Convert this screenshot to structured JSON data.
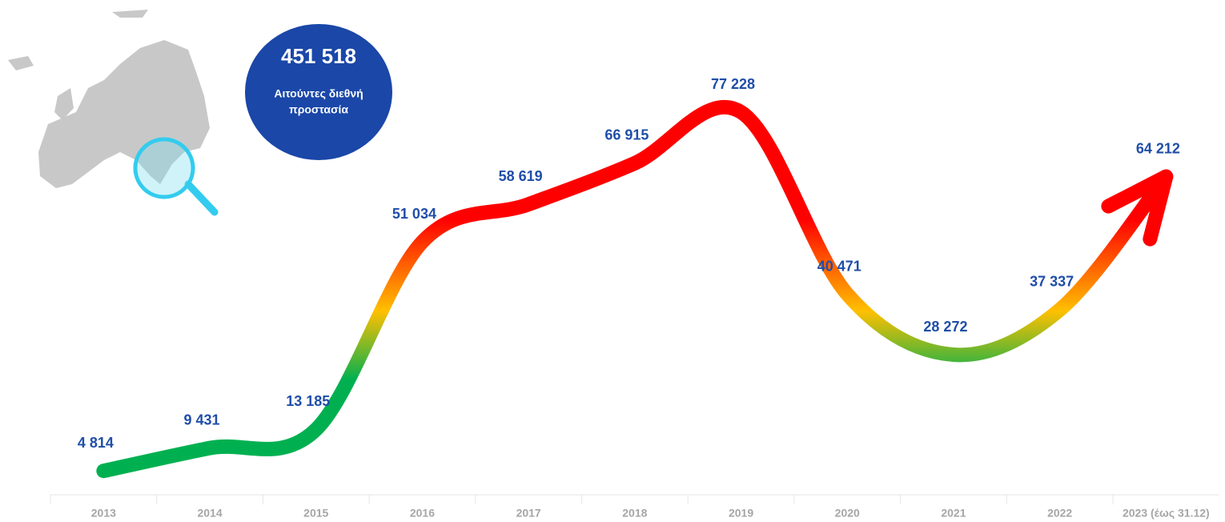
{
  "chart_data": {
    "type": "line",
    "categories": [
      "2013",
      "2014",
      "2015",
      "2016",
      "2017",
      "2018",
      "2019",
      "2020",
      "2021",
      "2022",
      "2023 (έως 31.12)"
    ],
    "values": [
      4814,
      9431,
      13185,
      51034,
      58619,
      66915,
      77228,
      40471,
      28272,
      37337,
      64212
    ],
    "value_labels": [
      "4 814",
      "9 431",
      "13 185",
      "51 034",
      "58 619",
      "66 915",
      "77 228",
      "40 471",
      "28 272",
      "37 337",
      "64 212"
    ],
    "colors": [
      "#00b050",
      "#ffc000",
      "#ff0000"
    ],
    "annotation": {
      "value": "451 518",
      "text": [
        "Αιτούντες διεθνή",
        "προστασία"
      ]
    }
  }
}
